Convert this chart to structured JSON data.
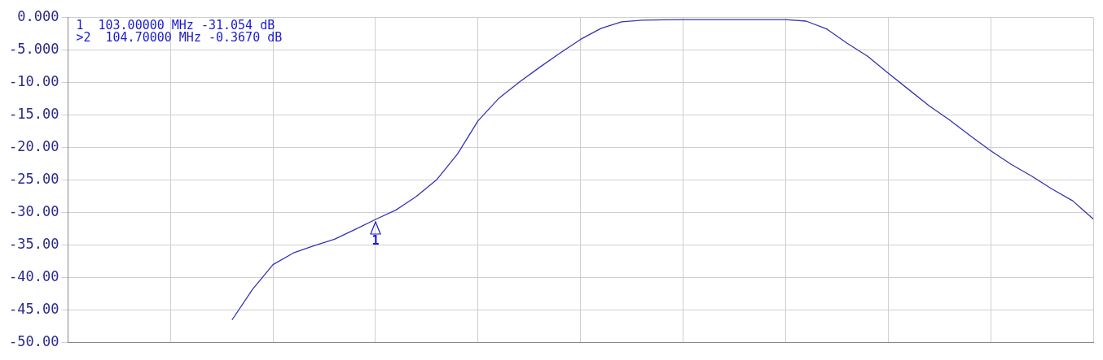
{
  "chart_data": {
    "type": "line",
    "categories": [
      null,
      null,
      null,
      null,
      null,
      null,
      null,
      null,
      null,
      null,
      null,
      null,
      null,
      null,
      null,
      null,
      null,
      null,
      null,
      null,
      null,
      null,
      null,
      null,
      null,
      null,
      null,
      null,
      null,
      null,
      null,
      null,
      null,
      null,
      null,
      null,
      null,
      null,
      null,
      null,
      null,
      null,
      null,
      null,
      null,
      null,
      null,
      null,
      null,
      null,
      null
    ],
    "series": [
      {
        "color": "#3434b0",
        "values": [
          null,
          null,
          null,
          null,
          null,
          null,
          null,
          null,
          -46.5,
          -41.8,
          -38.0,
          -36.2,
          -35.1,
          -34.1,
          -32.6,
          -31.054,
          -29.6,
          -27.5,
          -24.9,
          -21.0,
          -15.9,
          -12.5,
          -10.0,
          -7.7,
          -5.5,
          -3.4,
          -1.7,
          -0.7,
          -0.45,
          -0.4,
          -0.37,
          -0.37,
          -0.367,
          -0.37,
          -0.37,
          -0.37,
          -0.6,
          -1.8,
          -4.0,
          -6.0,
          -8.6,
          -11.1,
          -13.6,
          -15.8,
          -18.2,
          -20.5,
          -22.6,
          -24.4,
          -26.4,
          -28.2,
          -31.0
        ]
      }
    ],
    "ylim": [
      -50,
      0
    ],
    "yticks": [
      {
        "value": 0,
        "label": "0.000"
      },
      {
        "value": -5,
        "label": "-5.000"
      },
      {
        "value": -10,
        "label": "-10.00"
      },
      {
        "value": -15,
        "label": "-15.00"
      },
      {
        "value": -20,
        "label": "-20.00"
      },
      {
        "value": -25,
        "label": "-25.00"
      },
      {
        "value": -30,
        "label": "-30.00"
      },
      {
        "value": -35,
        "label": "-35.00"
      },
      {
        "value": -40,
        "label": "-40.00"
      },
      {
        "value": -45,
        "label": "-45.00"
      },
      {
        "value": -50,
        "label": "-50.00"
      }
    ],
    "grid": true,
    "marker": "none",
    "legend": false,
    "annotations": [
      "1  103.00000 MHz -31.054 dB",
      ">2  104.70000 MHz -0.3670 dB",
      {
        "text": "1",
        "y": -31.054
      }
    ]
  }
}
